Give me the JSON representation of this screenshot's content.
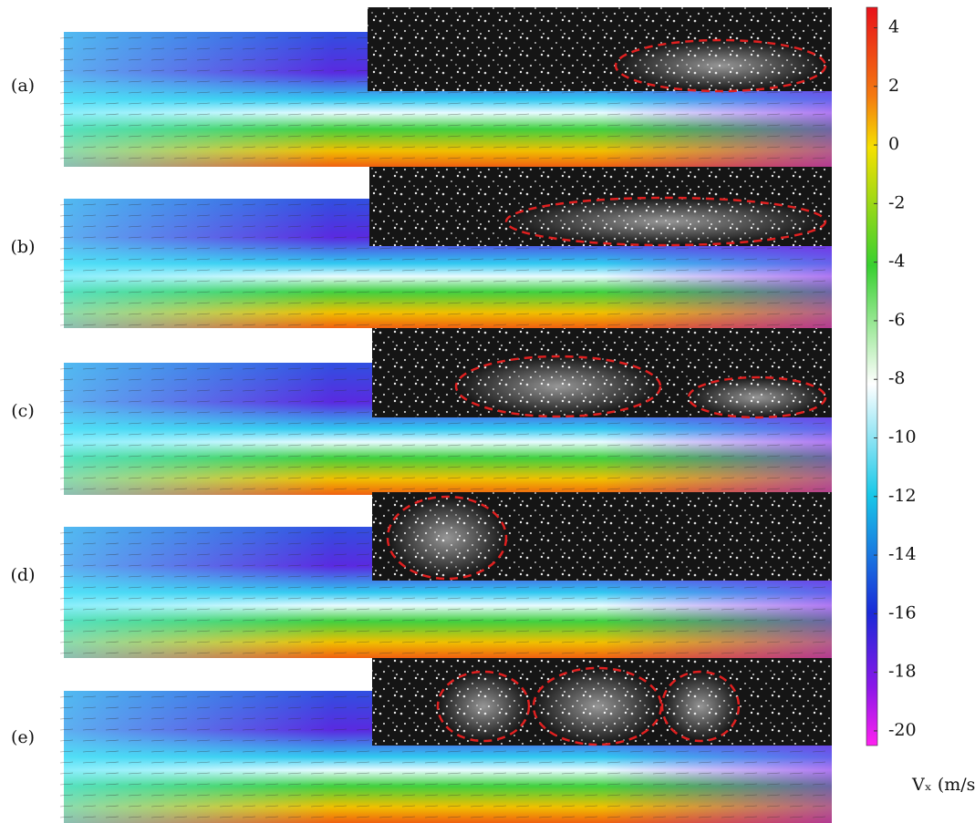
{
  "panels": [
    {
      "label": "(a)"
    },
    {
      "label": "(b)"
    },
    {
      "label": "(c)"
    },
    {
      "label": "(d)"
    },
    {
      "label": "(e)"
    }
  ],
  "colorbar": {
    "lim": [
      -20.5,
      4.7
    ],
    "ticks": [
      4,
      2,
      0,
      -2,
      -4,
      -6,
      -8,
      -10,
      -12,
      -14,
      -16,
      -18,
      -20
    ],
    "label": "Vₓ (m/s)"
  }
}
